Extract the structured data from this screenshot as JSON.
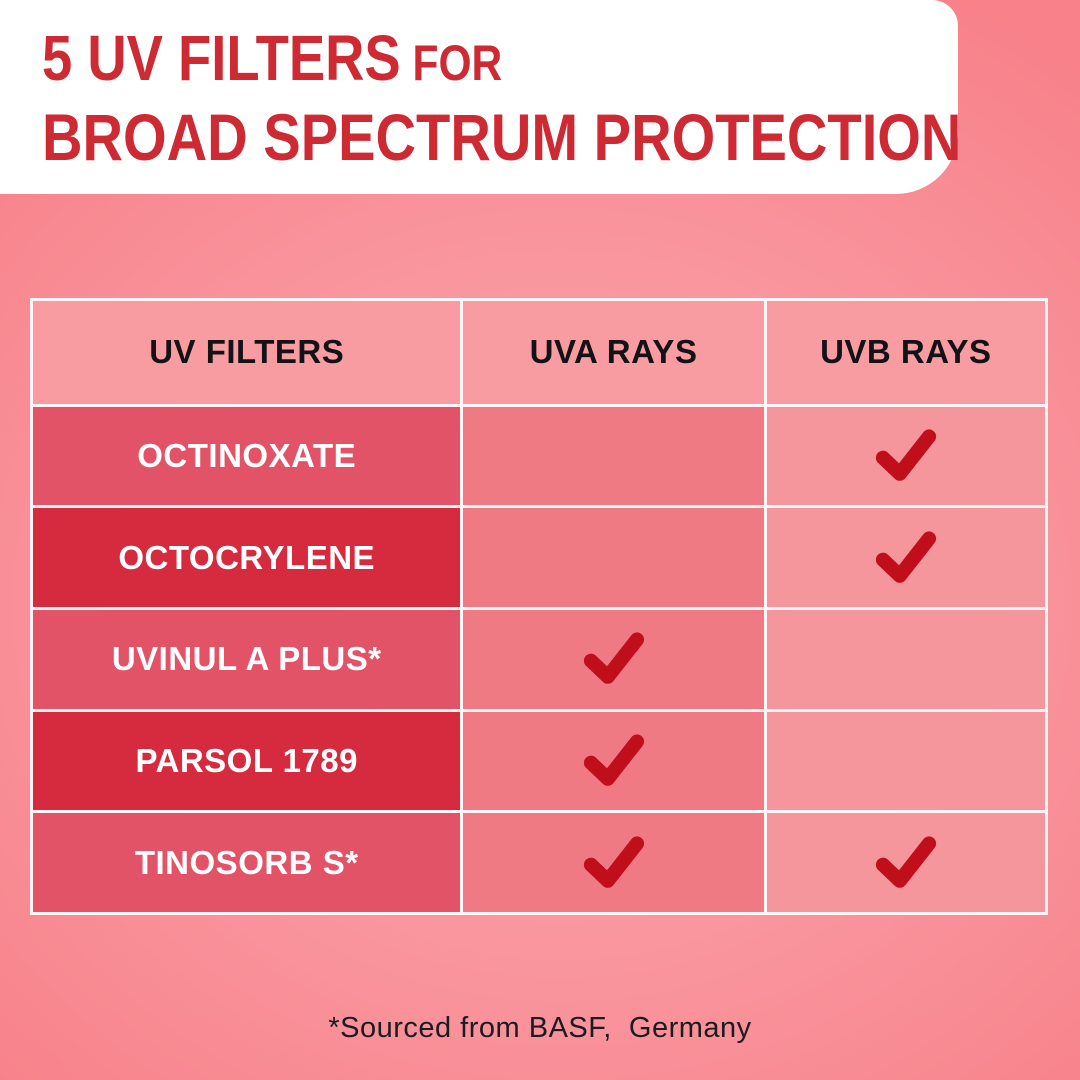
{
  "chart_data": {
    "type": "table",
    "title": "5 UV FILTERS FOR BROAD SPECTRUM PROTECTION",
    "columns": [
      "UV FILTERS",
      "UVA RAYS",
      "UVB RAYS"
    ],
    "rows": [
      [
        "OCTINOXATE",
        "",
        "check"
      ],
      [
        "OCTOCRYLENE",
        "",
        "check"
      ],
      [
        "UVINUL A PLUS*",
        "check",
        ""
      ],
      [
        "PARSOL 1789",
        "check",
        ""
      ],
      [
        "TINOSORB S*",
        "check",
        "check"
      ]
    ],
    "footnote": "*Sourced from BASF,  Germany"
  },
  "header": {
    "title_line1_main": "5 UV FILTERS",
    "title_line1_small": " FOR",
    "title_line2": "BROAD SPECTRUM PROTECTION"
  },
  "table": {
    "columns": [
      "UV FILTERS",
      "UVA RAYS",
      "UVB RAYS"
    ],
    "rows": [
      {
        "filter": "OCTINOXATE",
        "uva": false,
        "uvb": true,
        "shade": "medium"
      },
      {
        "filter": "OCTOCRYLENE",
        "uva": false,
        "uvb": true,
        "shade": "dark"
      },
      {
        "filter": "UVINUL A PLUS*",
        "uva": true,
        "uvb": false,
        "shade": "medium"
      },
      {
        "filter": "PARSOL 1789",
        "uva": true,
        "uvb": false,
        "shade": "dark"
      },
      {
        "filter": "TINOSORB S*",
        "uva": true,
        "uvb": true,
        "shade": "medium"
      }
    ]
  },
  "footer": {
    "note": "*Sourced from BASF,  Germany"
  },
  "colors": {
    "title": "#CE2A33",
    "banner_bg": "#FFFFFF",
    "bg_center": "#FAA7AD",
    "bg_mid": "#F9949C",
    "bg_edge": "#F8818A",
    "header_cell_bg": "#F89CA2",
    "label_medium_bg": "#E25367",
    "label_dark_bg": "#D62B3E",
    "uva_cell_bg": "#F07A83",
    "uvb_cell_bg": "#F5969C",
    "check": "#C10E1B"
  },
  "icons": {
    "check": "checkmark-icon"
  }
}
